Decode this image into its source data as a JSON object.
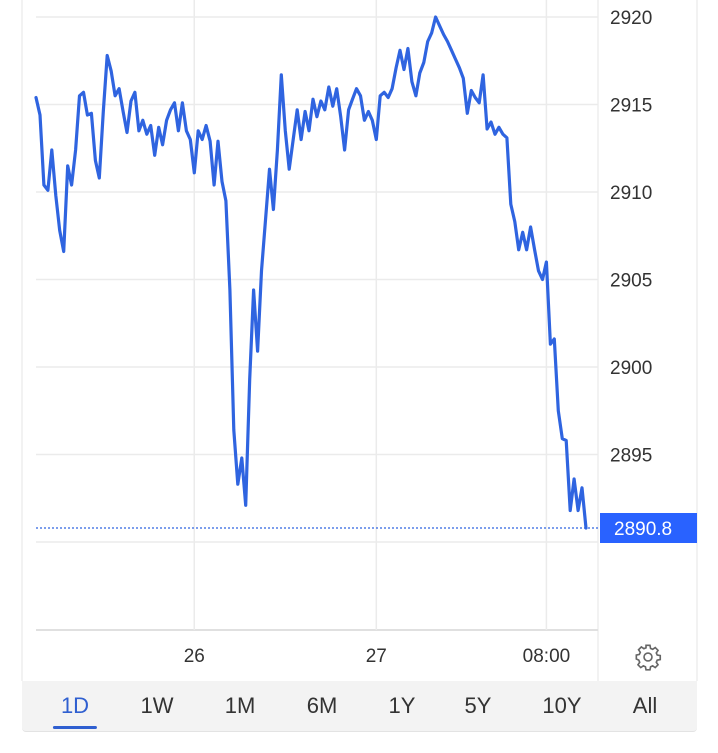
{
  "chart_data": {
    "type": "line",
    "title": "",
    "xlabel": "",
    "ylabel": "",
    "x_tick_labels": [
      "26",
      "27",
      "08:00"
    ],
    "y_ticks": [
      2895,
      2900,
      2905,
      2910,
      2915,
      2920
    ],
    "y_tick_labels": [
      "2895",
      "2900",
      "2905",
      "2910",
      "2915",
      "2920"
    ],
    "ylim": [
      2885,
      2921
    ],
    "grid": true,
    "line_color": "#2f64e0",
    "last_value": 2890.8,
    "last_value_label": "2890.8",
    "values": [
      2915.4,
      2914.4,
      2910.4,
      2910.1,
      2912.4,
      2909.8,
      2907.8,
      2906.6,
      2911.5,
      2910.4,
      2912.4,
      2915.5,
      2915.7,
      2914.4,
      2914.5,
      2911.8,
      2910.8,
      2914.6,
      2917.8,
      2916.9,
      2915.5,
      2915.9,
      2914.6,
      2913.4,
      2915.2,
      2915.7,
      2913.5,
      2914.1,
      2913.3,
      2913.8,
      2912.1,
      2913.7,
      2912.7,
      2914.1,
      2914.7,
      2915.1,
      2913.5,
      2915.1,
      2913.5,
      2913.0,
      2911.1,
      2913.5,
      2913.0,
      2913.8,
      2912.9,
      2910.4,
      2912.9,
      2910.6,
      2909.5,
      2904.4,
      2896.4,
      2893.3,
      2894.8,
      2892.1,
      2899.3,
      2904.4,
      2900.9,
      2905.5,
      2908.4,
      2911.3,
      2909.0,
      2912.4,
      2916.7,
      2913.5,
      2911.3,
      2913.0,
      2914.7,
      2913.0,
      2914.6,
      2913.5,
      2915.3,
      2914.3,
      2915.2,
      2914.7,
      2916.0,
      2914.9,
      2915.9,
      2914.3,
      2912.4,
      2914.7,
      2915.3,
      2915.9,
      2915.5,
      2914.1,
      2914.6,
      2914.1,
      2913.0,
      2915.5,
      2915.7,
      2915.4,
      2915.9,
      2917.1,
      2918.1,
      2917.0,
      2918.2,
      2916.3,
      2915.5,
      2916.8,
      2917.4,
      2918.6,
      2919.1,
      2920.0,
      2919.5,
      2919.0,
      2918.6,
      2918.1,
      2917.6,
      2917.1,
      2916.5,
      2914.5,
      2915.8,
      2915.4,
      2915.1,
      2916.7,
      2913.6,
      2914.0,
      2913.3,
      2913.7,
      2913.3,
      2913.1,
      2909.3,
      2908.3,
      2906.7,
      2907.7,
      2906.7,
      2908.0,
      2906.7,
      2905.5,
      2905.0,
      2906.0,
      2901.3,
      2901.6,
      2897.5,
      2895.9,
      2895.8,
      2891.8,
      2893.6,
      2891.8,
      2893.1,
      2890.8
    ],
    "x_tick_positions_index": [
      40,
      86,
      129
    ]
  },
  "settings_icon": "gear-icon",
  "range_tabs": {
    "active": "1D",
    "active_color": "#2f5fd0",
    "items": [
      "1D",
      "1W",
      "1M",
      "6M",
      "1Y",
      "5Y",
      "10Y",
      "All"
    ]
  }
}
